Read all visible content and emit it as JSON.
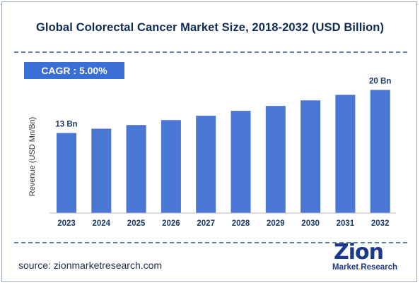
{
  "chart_data": {
    "type": "bar",
    "title": "Global Colorectal Cancer Market Size, 2018-2032 (USD Billion)",
    "ylabel": "Revenue (USD Mn/Bn)",
    "xlabel": "",
    "categories": [
      "2023",
      "2024",
      "2025",
      "2026",
      "2027",
      "2028",
      "2029",
      "2030",
      "2031",
      "2032"
    ],
    "values": [
      13,
      13.7,
      14.3,
      15.1,
      15.8,
      16.6,
      17.4,
      18.3,
      19.2,
      20
    ],
    "data_labels": [
      {
        "category": "2023",
        "text": "13 Bn"
      },
      {
        "category": "2032",
        "text": "20 Bn"
      }
    ],
    "ylim": [
      0,
      22
    ],
    "grid": false,
    "bar_color": "#4a76d6"
  },
  "cagr_label": "CAGR : 5.00%",
  "source_text": "source: zionmarketresearch.com",
  "logo": {
    "main": "Zion",
    "sub_left": "Market",
    "sub_dot": ".",
    "sub_right": "Research"
  }
}
